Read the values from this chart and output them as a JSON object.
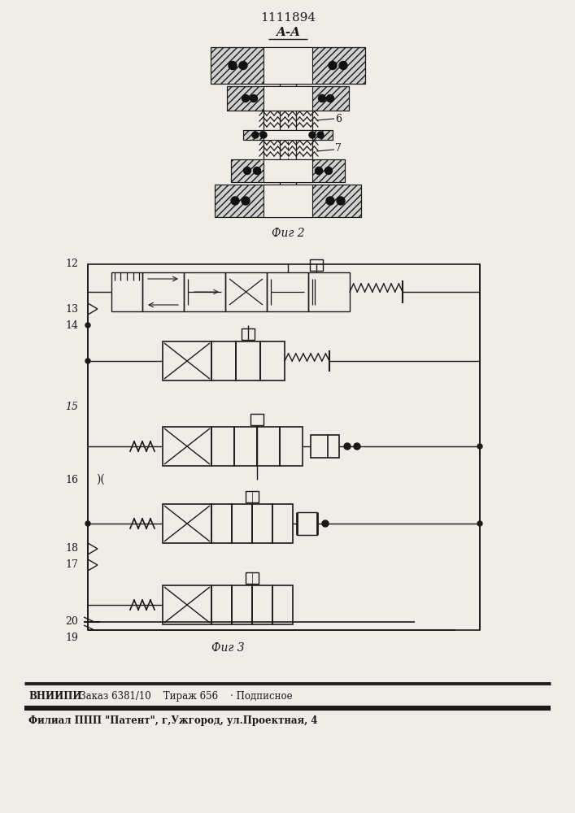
{
  "patent_number": "1111894",
  "fig2_label": "A-A",
  "fig2_caption": "Фиг 2",
  "fig3_caption": "Фиг 3",
  "label_6": "6",
  "label_7": "7",
  "label_12": "12",
  "label_13": "13",
  "label_14": "14",
  "label_15": "15",
  "label_16": "16",
  "label_17": "17",
  "label_18": "18",
  "label_19": "19",
  "label_20": "20",
  "footer_bold": "ВНИИПИ",
  "footer_line1_rest": "   Заказ 6381/10    Тираж 656    · Подписное",
  "footer_line2": "Филиал ППП \"Патент\", г,Ужгород, ул.Проектная, 4",
  "bg_color": "#f0ede8",
  "line_color": "#1a1a1a"
}
